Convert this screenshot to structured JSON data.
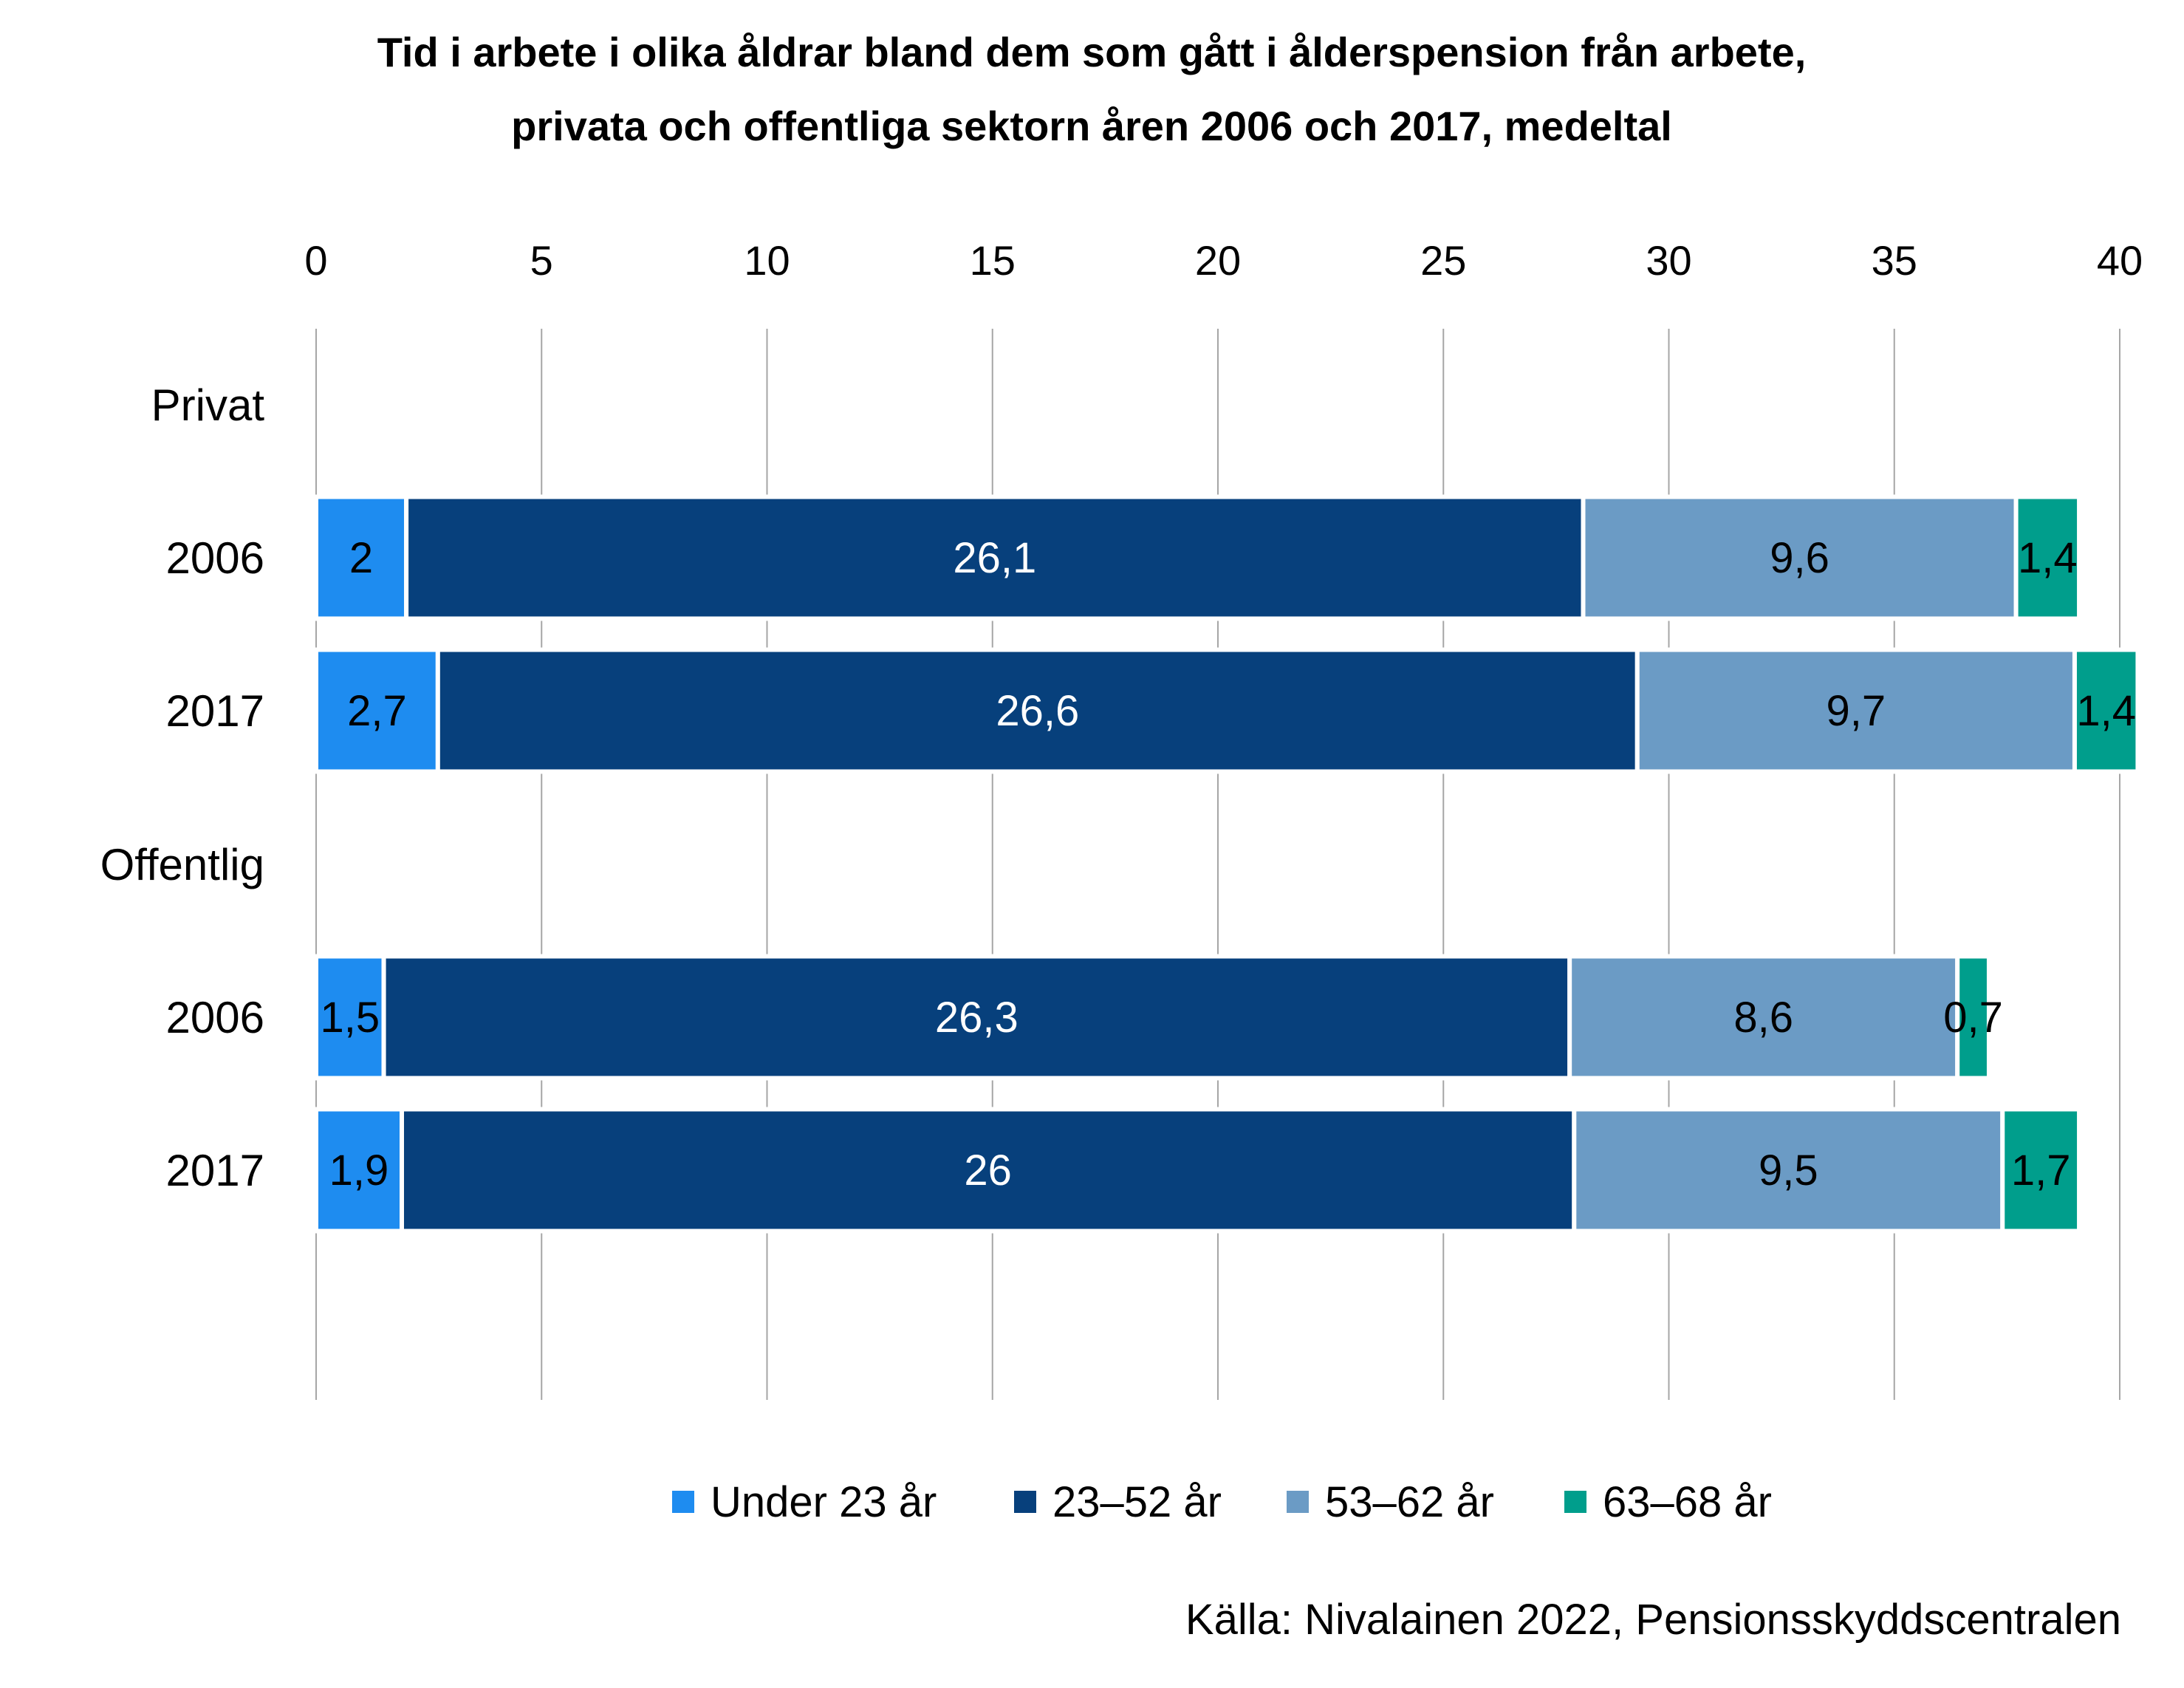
{
  "chart_data": {
    "type": "bar",
    "orientation": "horizontal",
    "stacked": true,
    "title_lines": [
      "Tid i arbete i olika åldrar bland dem som gått i ålderspension från arbete,",
      "privata och offentliga sektorn åren 2006 och 2017, medeltal"
    ],
    "xlim": [
      0,
      40
    ],
    "x_ticks": [
      "0",
      "5",
      "10",
      "15",
      "20",
      "25",
      "30",
      "35",
      "40"
    ],
    "x_tick_values": [
      0,
      5,
      10,
      15,
      20,
      25,
      30,
      35,
      40
    ],
    "grid": "vertical",
    "legend_position": "bottom",
    "rows": [
      {
        "kind": "group",
        "label": "Privat"
      },
      {
        "kind": "bar",
        "label": "2006",
        "values": [
          2,
          26.1,
          9.6,
          1.4
        ],
        "value_labels": [
          "2",
          "26,1",
          "9,6",
          "1,4"
        ]
      },
      {
        "kind": "bar",
        "label": "2017",
        "values": [
          2.7,
          26.6,
          9.7,
          1.4
        ],
        "value_labels": [
          "2,7",
          "26,6",
          "9,7",
          "1,4"
        ]
      },
      {
        "kind": "group",
        "label": "Offentlig"
      },
      {
        "kind": "bar",
        "label": "2006",
        "values": [
          1.5,
          26.3,
          8.6,
          0.7
        ],
        "value_labels": [
          "1,5",
          "26,3",
          "8,6",
          "0,7"
        ]
      },
      {
        "kind": "bar",
        "label": "2017",
        "values": [
          1.9,
          26,
          9.5,
          1.7
        ],
        "value_labels": [
          "1,9",
          "26",
          "9,5",
          "1,7"
        ]
      }
    ],
    "series": [
      {
        "name": "Under 23 år",
        "color": "#1e8cf0",
        "label_color": "#000000"
      },
      {
        "name": "23–52 år",
        "color": "#07407c",
        "label_color": "#ffffff"
      },
      {
        "name": "53–62 år",
        "color": "#6b9bc5",
        "label_color": "#000000"
      },
      {
        "name": "63–68 år",
        "color": "#009e8c",
        "label_color": "#000000"
      }
    ],
    "source": "Källa: Nivalainen 2022, Pensionsskyddscentralen"
  }
}
